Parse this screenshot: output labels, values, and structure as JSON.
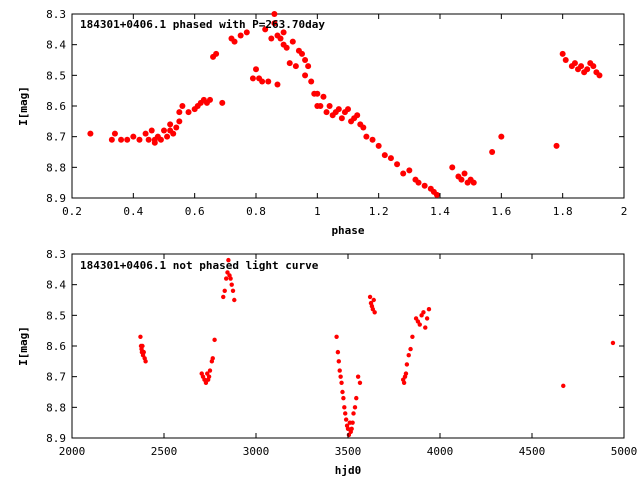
{
  "chart_data": [
    {
      "type": "scatter",
      "title": "184301+0406.1 phased with P=263.70day",
      "xlabel": "phase",
      "ylabel": "I[mag]",
      "xlim": [
        0.2,
        2.0
      ],
      "ylim": [
        8.3,
        8.9
      ],
      "y_inverted": true,
      "xticks": [
        "0.2",
        "0.4",
        "0.6",
        "0.8",
        "1",
        "1.2",
        "1.4",
        "1.6",
        "1.8",
        "2"
      ],
      "yticks": [
        "8.3",
        "8.4",
        "8.5",
        "8.6",
        "8.7",
        "8.8",
        "8.9"
      ],
      "grid": false,
      "marker_color": "#ff0000",
      "series": [
        {
          "x": [
            0.26,
            0.33,
            0.34,
            0.36,
            0.38,
            0.4,
            0.42,
            0.44,
            0.45,
            0.46,
            0.47,
            0.47,
            0.48,
            0.49,
            0.5,
            0.51,
            0.52,
            0.52,
            0.53,
            0.54,
            0.55,
            0.55,
            0.56,
            0.58,
            0.6,
            0.61,
            0.62,
            0.63,
            0.64,
            0.65,
            0.66,
            0.67,
            0.69,
            0.72,
            0.73,
            0.75,
            0.77,
            0.79,
            0.8,
            0.81,
            0.82,
            0.83,
            0.84,
            0.85,
            0.86,
            0.86,
            0.87,
            0.87,
            0.88,
            0.89,
            0.89,
            0.9,
            0.91,
            0.92,
            0.93,
            0.94,
            0.95,
            0.96,
            0.96,
            0.97,
            0.98,
            0.99,
            1.0,
            1.0,
            1.01,
            1.02,
            1.03,
            1.04,
            1.05,
            1.06,
            1.07,
            1.08,
            1.09,
            1.1,
            1.11,
            1.12,
            1.13,
            1.14,
            1.15,
            1.16,
            1.18,
            1.2,
            1.22,
            1.24,
            1.26,
            1.28,
            1.3,
            1.32,
            1.33,
            1.35,
            1.37,
            1.38,
            1.39,
            1.44,
            1.46,
            1.47,
            1.48,
            1.49,
            1.5,
            1.51,
            1.57,
            1.6,
            1.78,
            1.8,
            1.81,
            1.83,
            1.84,
            1.85,
            1.86,
            1.87,
            1.88,
            1.89,
            1.9,
            1.91,
            1.92
          ],
          "y": [
            8.69,
            8.71,
            8.69,
            8.71,
            8.71,
            8.7,
            8.71,
            8.69,
            8.71,
            8.68,
            8.71,
            8.72,
            8.7,
            8.71,
            8.68,
            8.7,
            8.68,
            8.66,
            8.69,
            8.67,
            8.65,
            8.62,
            8.6,
            8.62,
            8.61,
            8.6,
            8.59,
            8.58,
            8.59,
            8.58,
            8.44,
            8.43,
            8.59,
            8.38,
            8.39,
            8.37,
            8.36,
            8.51,
            8.48,
            8.51,
            8.52,
            8.35,
            8.52,
            8.38,
            8.3,
            8.33,
            8.37,
            8.53,
            8.38,
            8.36,
            8.4,
            8.41,
            8.46,
            8.39,
            8.47,
            8.42,
            8.43,
            8.45,
            8.5,
            8.47,
            8.52,
            8.56,
            8.56,
            8.6,
            8.6,
            8.57,
            8.62,
            8.6,
            8.63,
            8.62,
            8.61,
            8.64,
            8.62,
            8.61,
            8.65,
            8.64,
            8.63,
            8.66,
            8.67,
            8.7,
            8.71,
            8.73,
            8.76,
            8.77,
            8.79,
            8.82,
            8.81,
            8.84,
            8.85,
            8.86,
            8.87,
            8.88,
            8.89,
            8.8,
            8.83,
            8.84,
            8.82,
            8.85,
            8.84,
            8.85,
            8.75,
            8.7,
            8.73,
            8.43,
            8.45,
            8.47,
            8.46,
            8.48,
            8.47,
            8.49,
            8.48,
            8.46,
            8.47,
            8.49,
            8.5
          ]
        }
      ]
    },
    {
      "type": "scatter",
      "title": "184301+0406.1 not phased light curve",
      "xlabel": "hjd0",
      "ylabel": "I[mag]",
      "xlim": [
        2000,
        5000
      ],
      "ylim": [
        8.3,
        8.9
      ],
      "y_inverted": true,
      "xticks": [
        "2000",
        "2500",
        "3000",
        "3500",
        "4000",
        "4500",
        "5000"
      ],
      "yticks": [
        "8.3",
        "8.4",
        "8.5",
        "8.6",
        "8.7",
        "8.8",
        "8.9"
      ],
      "grid": false,
      "marker_color": "#ff0000",
      "series": [
        {
          "x": [
            2372,
            2375,
            2378,
            2380,
            2383,
            2386,
            2390,
            2395,
            2400,
            2705,
            2712,
            2720,
            2728,
            2735,
            2740,
            2745,
            2750,
            2760,
            2765,
            2775,
            2822,
            2830,
            2838,
            2845,
            2850,
            2856,
            2862,
            2868,
            2875,
            2882,
            3438,
            3445,
            3450,
            3455,
            3460,
            3465,
            3470,
            3475,
            3480,
            3485,
            3490,
            3495,
            3500,
            3505,
            3510,
            3515,
            3520,
            3525,
            3530,
            3538,
            3545,
            3555,
            3565,
            3620,
            3625,
            3630,
            3635,
            3640,
            3645,
            3800,
            3805,
            3810,
            3815,
            3820,
            3830,
            3840,
            3850,
            3870,
            3880,
            3890,
            3900,
            3910,
            3920,
            3930,
            3940,
            4670,
            4940
          ],
          "y": [
            8.57,
            8.6,
            8.61,
            8.62,
            8.6,
            8.63,
            8.62,
            8.64,
            8.65,
            8.69,
            8.7,
            8.71,
            8.72,
            8.69,
            8.71,
            8.7,
            8.68,
            8.65,
            8.64,
            8.58,
            8.44,
            8.42,
            8.38,
            8.36,
            8.32,
            8.37,
            8.38,
            8.4,
            8.42,
            8.45,
            8.57,
            8.62,
            8.65,
            8.68,
            8.7,
            8.72,
            8.75,
            8.77,
            8.8,
            8.82,
            8.84,
            8.86,
            8.87,
            8.89,
            8.85,
            8.88,
            8.87,
            8.85,
            8.82,
            8.8,
            8.77,
            8.7,
            8.72,
            8.44,
            8.46,
            8.47,
            8.48,
            8.45,
            8.49,
            8.71,
            8.72,
            8.7,
            8.69,
            8.66,
            8.63,
            8.61,
            8.57,
            8.51,
            8.52,
            8.53,
            8.5,
            8.49,
            8.54,
            8.51,
            8.48,
            8.73,
            8.59
          ]
        }
      ]
    }
  ]
}
